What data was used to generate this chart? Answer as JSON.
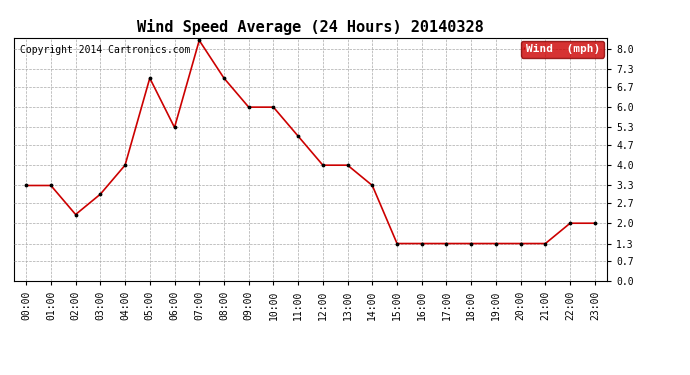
{
  "title": "Wind Speed Average (24 Hours) 20140328",
  "copyright": "Copyright 2014 Cartronics.com",
  "legend_label": "Wind  (mph)",
  "x_labels": [
    "00:00",
    "01:00",
    "02:00",
    "03:00",
    "04:00",
    "05:00",
    "06:00",
    "07:00",
    "08:00",
    "09:00",
    "10:00",
    "11:00",
    "12:00",
    "13:00",
    "14:00",
    "15:00",
    "16:00",
    "17:00",
    "18:00",
    "19:00",
    "20:00",
    "21:00",
    "22:00",
    "23:00"
  ],
  "y_values": [
    3.3,
    3.3,
    2.3,
    3.0,
    4.0,
    7.0,
    5.3,
    8.3,
    7.0,
    6.0,
    6.0,
    5.0,
    4.0,
    4.0,
    3.3,
    1.3,
    1.3,
    1.3,
    1.3,
    1.3,
    1.3,
    1.3,
    2.0,
    2.0
  ],
  "line_color": "#cc0000",
  "marker_color": "#000000",
  "grid_color": "#aaaaaa",
  "background_color": "#ffffff",
  "legend_bg": "#cc0000",
  "legend_text_color": "#ffffff",
  "y_ticks": [
    0.0,
    0.7,
    1.3,
    2.0,
    2.7,
    3.3,
    4.0,
    4.7,
    5.3,
    6.0,
    6.7,
    7.3,
    8.0
  ],
  "ylim": [
    0.0,
    8.4
  ],
  "xlim_left": -0.5,
  "xlim_right": 23.5,
  "title_fontsize": 11,
  "copyright_fontsize": 7,
  "tick_fontsize": 7,
  "legend_fontsize": 8,
  "fig_width": 6.9,
  "fig_height": 3.75,
  "dpi": 100
}
